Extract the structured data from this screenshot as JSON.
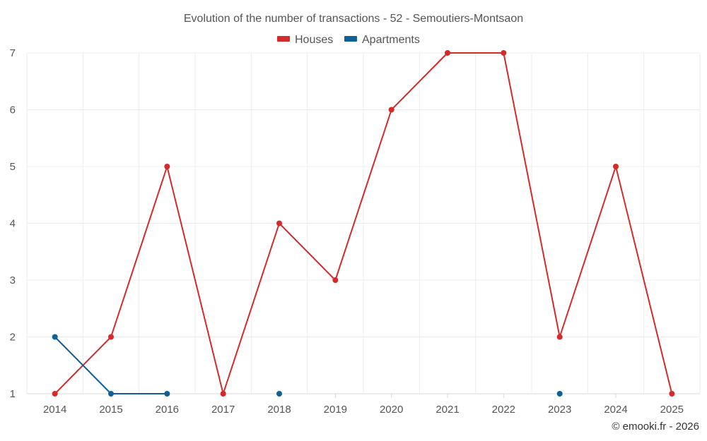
{
  "chart_data": {
    "type": "line",
    "title": "Evolution of the number of transactions - 52 - Semoutiers-Montsaon",
    "categories": [
      "2014",
      "2015",
      "2016",
      "2017",
      "2018",
      "2019",
      "2020",
      "2021",
      "2022",
      "2023",
      "2024",
      "2025"
    ],
    "series": [
      {
        "name": "Houses",
        "color": "#d42a2a",
        "values": [
          1,
          2,
          5,
          1,
          4,
          3,
          6,
          7,
          7,
          2,
          5,
          1
        ]
      },
      {
        "name": "Apartments",
        "color": "#0f6096",
        "values": [
          2,
          1,
          1,
          null,
          1,
          null,
          null,
          null,
          null,
          1,
          null,
          null
        ]
      }
    ],
    "ylim": [
      1,
      7
    ],
    "yticks": [
      1,
      2,
      3,
      4,
      5,
      6,
      7
    ],
    "xlabel": "",
    "ylabel": "",
    "grid": true,
    "legend": "top-center"
  },
  "credit": "© emooki.fr - 2026"
}
